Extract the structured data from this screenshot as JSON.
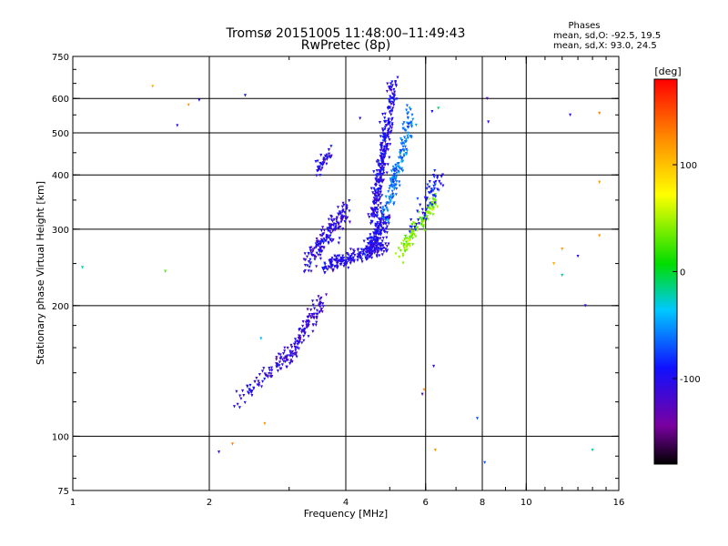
{
  "chart_data": {
    "type": "scatter",
    "title": "Tromsø 20151005 11:48:00–11:49:43",
    "subtitle": "RwPretec (8p)",
    "xlabel": "Frequency [MHz]",
    "ylabel": "Stationary phase Virtual Height [km]",
    "xscale": "log",
    "yscale": "log",
    "xlim": [
      1,
      16
    ],
    "ylim": [
      75,
      750
    ],
    "x_ticks": [
      1,
      2,
      4,
      6,
      8,
      10,
      16
    ],
    "x_tick_labels": [
      "1",
      "2",
      "4",
      "6",
      "8",
      "10",
      "16"
    ],
    "y_ticks": [
      75,
      100,
      200,
      300,
      400,
      500,
      600,
      750
    ],
    "y_tick_labels": [
      "75",
      "100",
      "200",
      "300",
      "400",
      "500",
      "600",
      "750"
    ],
    "grid_x": [
      2,
      4,
      6,
      8,
      10
    ],
    "grid_y": [
      100,
      200,
      300,
      400,
      500,
      600
    ],
    "stats": {
      "heading": "Phases",
      "line1": "mean, sd,O: -92.5, 19.5",
      "line2": "mean, sd,X:  93.0, 24.5"
    },
    "colorbar": {
      "label": "[deg]",
      "range": [
        -180,
        180
      ],
      "ticks": [
        100,
        0,
        -100
      ],
      "tick_labels": [
        "100",
        "0",
        "-100"
      ],
      "colormap": "rainbow"
    },
    "points": [
      [
        1.05,
        245,
        -20
      ],
      [
        1.5,
        640,
        110
      ],
      [
        1.7,
        520,
        -100
      ],
      [
        1.8,
        580,
        120
      ],
      [
        1.9,
        595,
        -110
      ],
      [
        1.6,
        240,
        30
      ],
      [
        2.1,
        92,
        -110
      ],
      [
        2.25,
        96,
        130
      ],
      [
        2.4,
        610,
        -90
      ],
      [
        2.6,
        168,
        -40
      ],
      [
        2.65,
        107,
        120
      ],
      [
        6.25,
        145,
        -110
      ],
      [
        6.3,
        93,
        120
      ],
      [
        6.4,
        570,
        -10
      ],
      [
        6.2,
        560,
        -90
      ],
      [
        7.8,
        110,
        -70
      ],
      [
        8.1,
        87,
        -70
      ],
      [
        8.2,
        600,
        -120
      ],
      [
        8.25,
        530,
        -100
      ],
      [
        11.5,
        250,
        110
      ],
      [
        12,
        270,
        120
      ],
      [
        12.5,
        550,
        -110
      ],
      [
        12,
        235,
        -20
      ],
      [
        13,
        260,
        -110
      ],
      [
        13.5,
        200,
        -100
      ],
      [
        14.5,
        385,
        120
      ],
      [
        14.5,
        555,
        130
      ],
      [
        14.5,
        290,
        120
      ],
      [
        14,
        93,
        -20
      ],
      [
        5.9,
        125,
        -120
      ],
      [
        5.95,
        128,
        120
      ],
      [
        4.3,
        540,
        -110
      ],
      [
        3.8,
        300,
        -100
      ],
      [
        3.7,
        305,
        -110
      ]
    ]
  }
}
